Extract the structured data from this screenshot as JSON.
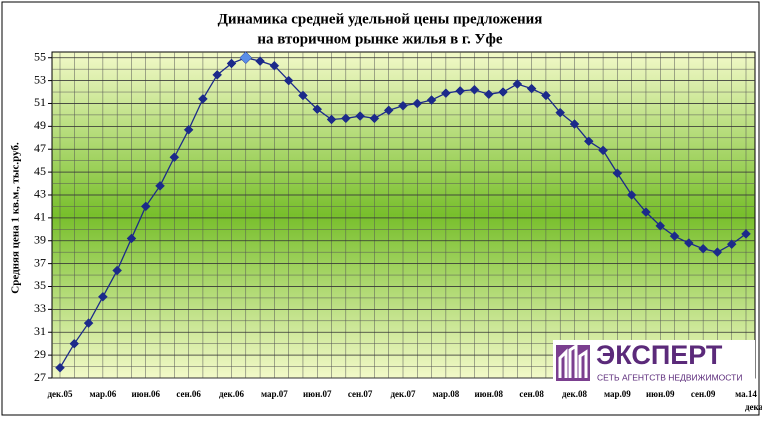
{
  "chart_data": {
    "type": "line",
    "title": [
      "Динамика средней удельной цены предложения",
      "на вторичном рынке жилья в г. Уфе"
    ],
    "y_label": "Средняя цена 1 кв.м., тыс.руб.",
    "categories": [
      "дек.05",
      null,
      null,
      "мар.06",
      null,
      null,
      "июн.06",
      null,
      null,
      "сен.06",
      null,
      null,
      "дек.06",
      null,
      null,
      "мар.07",
      null,
      null,
      "июн.07",
      null,
      null,
      "сен.07",
      null,
      null,
      "дек.07",
      null,
      null,
      "мар.08",
      null,
      null,
      "июн.08",
      null,
      null,
      "сен.08",
      null,
      null,
      "дек.08",
      null,
      null,
      "мар.09",
      null,
      null,
      "июн.09",
      null,
      null,
      "сен.09",
      null,
      null,
      "ма.14"
    ],
    "annotation": "декабр",
    "series": [
      {
        "color": "#1c2a8a",
        "highlight_color": "#5a8ee8",
        "highlight_index": 13,
        "values": [
          27.9,
          30.0,
          31.8,
          34.1,
          36.4,
          39.2,
          42.0,
          43.8,
          46.3,
          48.7,
          51.4,
          53.5,
          54.5,
          55.0,
          54.7,
          54.3,
          53.0,
          51.7,
          50.5,
          49.6,
          49.7,
          49.9,
          49.7,
          50.4,
          50.8,
          51.0,
          51.3,
          51.9,
          52.1,
          52.2,
          51.8,
          52.0,
          52.7,
          52.3,
          51.7,
          50.2,
          49.2,
          47.7,
          46.9,
          44.9,
          43.0,
          41.5,
          40.3,
          39.4,
          38.8,
          38.3,
          38.0,
          38.7,
          39.6
        ]
      }
    ],
    "ylim": [
      27,
      55.5
    ],
    "yticks": [
      27,
      29,
      31,
      33,
      35,
      37,
      39,
      41,
      43,
      45,
      47,
      49,
      51,
      53,
      55
    ],
    "grid": true,
    "logo": {
      "name": "ЭКСПЕРТ",
      "tagline": "СЕТЬ АГЕНТСТВ НЕДВИЖИМОСТИ"
    }
  }
}
